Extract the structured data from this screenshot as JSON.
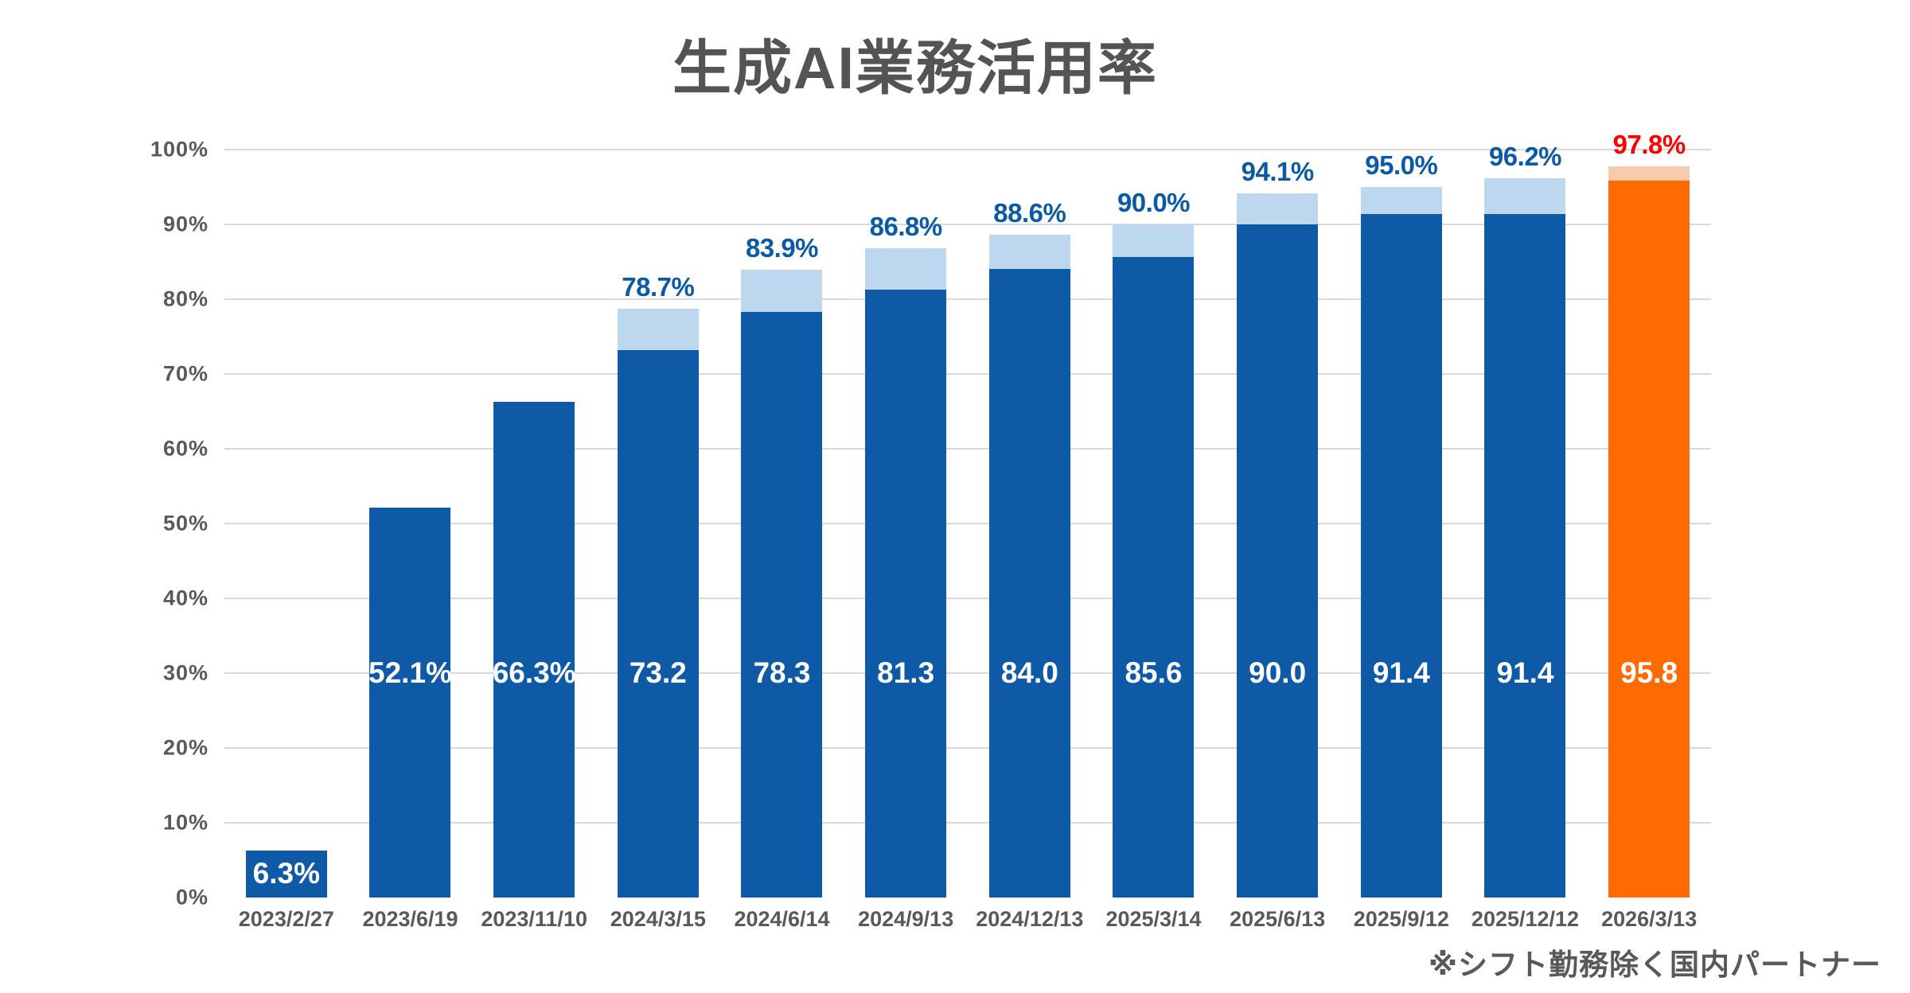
{
  "chart_data": {
    "type": "stacked-bar",
    "title": "生成AI業務活用率",
    "categories": [
      "2023/2/27",
      "2023/6/19",
      "2023/11/10",
      "2024/3/15",
      "2024/6/14",
      "2024/9/13",
      "2024/12/13",
      "2025/3/14",
      "2025/6/13",
      "2025/9/12",
      "2025/12/12",
      "2026/3/13"
    ],
    "series": [
      {
        "name": "solid",
        "values": [
          6.3,
          52.1,
          66.3,
          73.2,
          78.3,
          81.3,
          84.0,
          85.6,
          90.0,
          91.4,
          91.4,
          95.8
        ]
      },
      {
        "name": "cap",
        "values": [
          0,
          0,
          0,
          5.5,
          5.6,
          5.5,
          4.6,
          4.4,
          4.1,
          3.6,
          4.8,
          2.0
        ]
      }
    ],
    "totals": [
      6.3,
      52.1,
      66.3,
      78.7,
      83.9,
      86.8,
      88.6,
      90.0,
      94.1,
      95.0,
      96.2,
      97.8
    ],
    "bar_value_labels": [
      "6.3%",
      "52.1%",
      "66.3%",
      "73.2",
      "78.3",
      "81.3",
      "84.0",
      "85.6",
      "90.0",
      "91.4",
      "91.4",
      "95.8"
    ],
    "total_value_labels": [
      "",
      "",
      "",
      "78.7%",
      "83.9%",
      "86.8%",
      "88.6%",
      "90.0%",
      "94.1%",
      "95.0%",
      "96.2%",
      "97.8%"
    ],
    "highlight_index": 11,
    "ylim": [
      0,
      100
    ],
    "ytick_interval": 10,
    "ytick_labels": [
      "0%",
      "10%",
      "20%",
      "30%",
      "40%",
      "50%",
      "60%",
      "70%",
      "80%",
      "90%",
      "100%"
    ],
    "grid": true,
    "legend": false
  },
  "footnote": "※シフト勤務除く国内パートナー",
  "colors": {
    "bar_blue": "#0E5AA7",
    "cap_blue": "#BDD7EE",
    "bar_orange": "#FF6B00",
    "cap_orange": "#F8CBAD",
    "value_label_blue": "#0A5AA5",
    "value_label_red": "#FF0000",
    "inside_label_white": "#FFFFFF",
    "axis_text_gray": "#595959",
    "title_gray": "#545454",
    "gridline_gray": "#D9D9D9"
  }
}
